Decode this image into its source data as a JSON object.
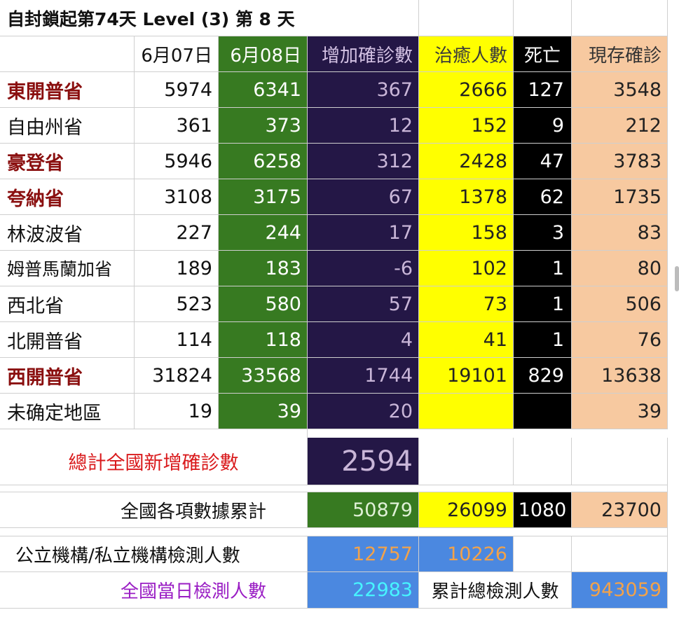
{
  "title": "自封鎖起第74天  Level (3) 第 8 天",
  "headers": [
    "6月07日",
    "6月08日",
    "增加確診數",
    "治癒人數",
    "死亡",
    "現存確診"
  ],
  "rows": [
    {
      "name": "東開普省",
      "emph": true,
      "d1": "5974",
      "d2": "6341",
      "inc": "367",
      "rec": "2666",
      "death": "127",
      "active": "3548"
    },
    {
      "name": "自由州省",
      "emph": false,
      "d1": "361",
      "d2": "373",
      "inc": "12",
      "rec": "152",
      "death": "9",
      "active": "212"
    },
    {
      "name": "豪登省",
      "emph": true,
      "d1": "5946",
      "d2": "6258",
      "inc": "312",
      "rec": "2428",
      "death": "47",
      "active": "3783"
    },
    {
      "name": "夸納省",
      "emph": true,
      "d1": "3108",
      "d2": "3175",
      "inc": "67",
      "rec": "1378",
      "death": "62",
      "active": "1735"
    },
    {
      "name": "林波波省",
      "emph": false,
      "d1": "227",
      "d2": "244",
      "inc": "17",
      "rec": "158",
      "death": "3",
      "active": "83"
    },
    {
      "name": "姆普馬蘭加省",
      "emph": false,
      "d1": "189",
      "d2": "183",
      "inc": "-6",
      "rec": "102",
      "death": "1",
      "active": "80"
    },
    {
      "name": "西北省",
      "emph": false,
      "d1": "523",
      "d2": "580",
      "inc": "57",
      "rec": "73",
      "death": "1",
      "active": "506"
    },
    {
      "name": "北開普省",
      "emph": false,
      "d1": "114",
      "d2": "118",
      "inc": "4",
      "rec": "41",
      "death": "1",
      "active": "76"
    },
    {
      "name": "西開普省",
      "emph": true,
      "d1": "31824",
      "d2": "33568",
      "inc": "1744",
      "rec": "19101",
      "death": "829",
      "active": "13638"
    },
    {
      "name": "未确定地區",
      "emph": false,
      "d1": "19",
      "d2": "39",
      "inc": "20",
      "rec": "",
      "death": "",
      "active": "39"
    }
  ],
  "national_new": {
    "label": "總計全國新增確診數",
    "value": "2594"
  },
  "cumulative": {
    "label": "全國各項數據累計",
    "confirmed": "50879",
    "recovered": "26099",
    "deaths": "1080",
    "active": "23700"
  },
  "testing": {
    "label": "公立機構/私立機構檢測人數",
    "public": "12757",
    "private": "10226",
    "daily_label": "全國當日檢測人數",
    "daily": "22983",
    "total_label": "累計總檢測人數",
    "total": "943059"
  }
}
